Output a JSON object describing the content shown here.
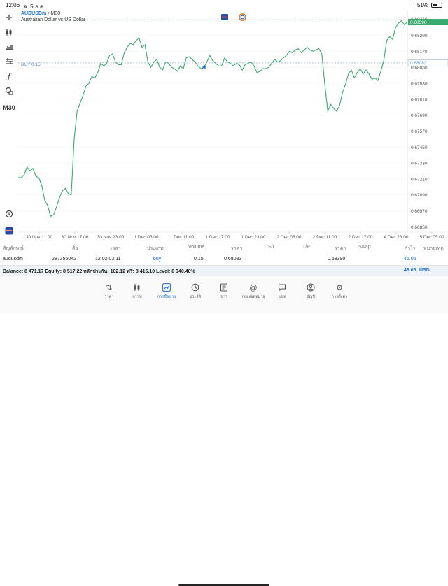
{
  "status_bar": {
    "time": "12:06",
    "date": "จ. 5 ธ.ค.",
    "battery": "51%",
    "battery_level": 0.51
  },
  "toolbar": {
    "timeframe": "M30"
  },
  "chart": {
    "symbol": "AUDUSDm",
    "separator": " • M30",
    "description": "Australian Dollar vs US Dollar",
    "buy_label": "BUY 0.15",
    "current_price": "0.68390",
    "buy_price_tag": "0.68083",
    "colors": {
      "line": "#3aaa6e",
      "accent": "#1a6fd1",
      "buy": "#5b8fd9"
    }
  },
  "chart_data": {
    "type": "line",
    "x_ticks": [
      "30 Nov 11:00",
      "30 Nov 17:00",
      "30 Nov 23:00",
      "1 Dec 05:00",
      "1 Dec 11:00",
      "1 Dec 17:00",
      "1 Dec 23:00",
      "2 Dec 05:00",
      "2 Dec 11:00",
      "2 Dec 17:00",
      "4 Dec 23:00",
      "5 Dec 05:00"
    ],
    "y_ticks": [
      "0.68410",
      "0.68290",
      "0.68170",
      "0.68050",
      "0.67930",
      "0.67810",
      "0.67690",
      "0.67570",
      "0.67450",
      "0.67330",
      "0.67210",
      "0.67090",
      "0.66970",
      "0.66850"
    ],
    "ylim": [
      0.6681,
      0.6844
    ],
    "values": [
      0.6722,
      0.6722,
      0.6724,
      0.673,
      0.6727,
      0.6729,
      0.6723,
      0.6722,
      0.6716,
      0.6705,
      0.6701,
      0.6693,
      0.6694,
      0.67,
      0.6707,
      0.6712,
      0.6714,
      0.671,
      0.6709,
      0.6751,
      0.6772,
      0.6778,
      0.6784,
      0.6791,
      0.6793,
      0.6798,
      0.6797,
      0.6801,
      0.6808,
      0.6806,
      0.6808,
      0.6814,
      0.6815,
      0.6809,
      0.6807,
      0.6807,
      0.6816,
      0.682,
      0.6823,
      0.6822,
      0.6825,
      0.6827,
      0.682,
      0.6822,
      0.6809,
      0.6805,
      0.6809,
      0.6811,
      0.6805,
      0.6803,
      0.6809,
      0.6808,
      0.6805,
      0.6804,
      0.6802,
      0.6806,
      0.6804,
      0.6812,
      0.6813,
      0.6811,
      0.6809,
      0.6806,
      0.6804,
      0.6805,
      0.6809,
      0.6814,
      0.681,
      0.6808,
      0.6806,
      0.6806,
      0.6812,
      0.6809,
      0.6808,
      0.6806,
      0.6808,
      0.6807,
      0.6803,
      0.6807,
      0.6808,
      0.6809,
      0.6806,
      0.6801,
      0.6802,
      0.6804,
      0.6804,
      0.6805,
      0.6808,
      0.6811,
      0.6809,
      0.681,
      0.6812,
      0.6814,
      0.6817,
      0.6816,
      0.6818,
      0.6819,
      0.6816,
      0.6818,
      0.682,
      0.6818,
      0.6817,
      0.6818,
      0.6819,
      0.6815,
      0.6792,
      0.6772,
      0.6777,
      0.6774,
      0.6772,
      0.6776,
      0.6786,
      0.6792,
      0.68,
      0.6803,
      0.6797,
      0.6801,
      0.6804,
      0.68,
      0.6803,
      0.68,
      0.6796,
      0.6797,
      0.6795,
      0.6802,
      0.681,
      0.6825,
      0.6828,
      0.6826,
      0.6835,
      0.6838,
      0.684,
      0.6837,
      0.6839
    ],
    "current": 0.6839,
    "buy_level": 0.68083,
    "buy_marker_index": 63
  },
  "positions_header": {
    "symbol": "สัญลักษณ์",
    "ticket": "ตั๋ว",
    "time": "เวลา",
    "type": "ประเภท",
    "volume": "Volume",
    "price": "ราคา",
    "sl": "S/L",
    "tp": "T/P",
    "price2": "ราคา",
    "swap": "Swap",
    "profit": "กำไร",
    "comment": "หมายเหตุ"
  },
  "position": {
    "symbol": "audusdm",
    "ticket": "287356042",
    "time": "12.02 03:11",
    "type": "buy",
    "volume": "0.15",
    "open_price": "0.68083",
    "current_price": "0.68390",
    "profit": "46.05"
  },
  "balance": {
    "text": "Balance: 8 471.17 Equity: 8 517.22 หลักประกัน: 102.12 ฟรี: 8 415.10 Level: 8 340.40%",
    "profit": "46.05",
    "currency": "USD"
  },
  "tabs": [
    {
      "label": "ราคา",
      "icon": "quotes-arrows-icon"
    },
    {
      "label": "กราฟ",
      "icon": "chart-bars-icon"
    },
    {
      "label": "การซื้อขาย",
      "icon": "trade-icon",
      "active": true
    },
    {
      "label": "ประวัติ",
      "icon": "history-clock-icon"
    },
    {
      "label": "ข่าว",
      "icon": "news-icon"
    },
    {
      "label": "กล่องจดหมาย",
      "icon": "mailbox-at-icon"
    },
    {
      "label": "แชท",
      "icon": "chat-icon"
    },
    {
      "label": "บัญชี",
      "icon": "account-user-icon"
    },
    {
      "label": "การตั้งค่า",
      "icon": "settings-gear-icon"
    }
  ]
}
